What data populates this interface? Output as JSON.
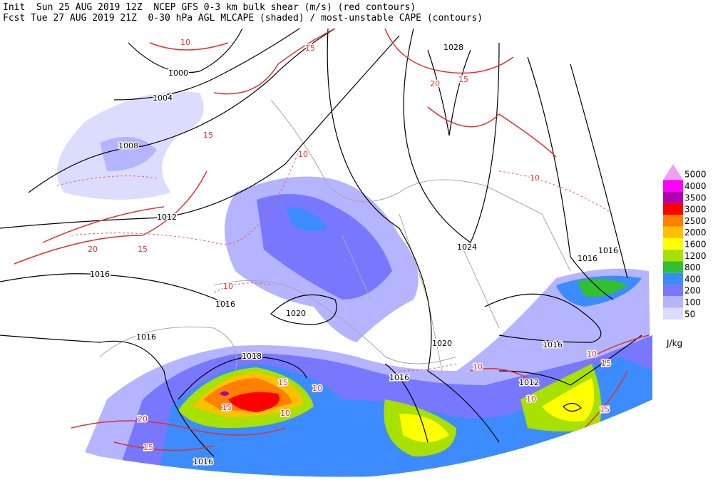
{
  "header": {
    "line1": "Init  Sun 25 AUG 2019 12Z  NCEP GFS 0-3 km bulk shear (m/s) (red contours)",
    "line2": "Fcst Tue 27 AUG 2019 21Z  0-30 hPa AGL MLCAPE (shaded) / most-unstable CAPE (contours)"
  },
  "legend": {
    "unit": "J/kg",
    "levels": [
      {
        "label": 5000,
        "color": "#f0a0f0"
      },
      {
        "label": 4000,
        "color": "#ff00ff"
      },
      {
        "label": 3500,
        "color": "#b000b0"
      },
      {
        "label": 3000,
        "color": "#ff0000"
      },
      {
        "label": 2500,
        "color": "#ff8000"
      },
      {
        "label": 2000,
        "color": "#ffc000"
      },
      {
        "label": 1600,
        "color": "#ffff00"
      },
      {
        "label": 1200,
        "color": "#a8e000"
      },
      {
        "label": 800,
        "color": "#30c030"
      },
      {
        "label": 400,
        "color": "#3c8cff"
      },
      {
        "label": 200,
        "color": "#7878ff"
      },
      {
        "label": 100,
        "color": "#b4b4ff"
      },
      {
        "label": 50,
        "color": "#dcdcff"
      }
    ]
  },
  "isobar_labels": [
    1000,
    1004,
    1008,
    1012,
    1016,
    1016,
    1020,
    1016,
    1018,
    1016,
    1016,
    1020,
    1024,
    1028,
    1016,
    1016,
    1016,
    1012
  ],
  "shear_labels": [
    10,
    15,
    15,
    20,
    15,
    10,
    20,
    15,
    10,
    10,
    15,
    10,
    15,
    10,
    20,
    15,
    10,
    15,
    15,
    10,
    10
  ]
}
